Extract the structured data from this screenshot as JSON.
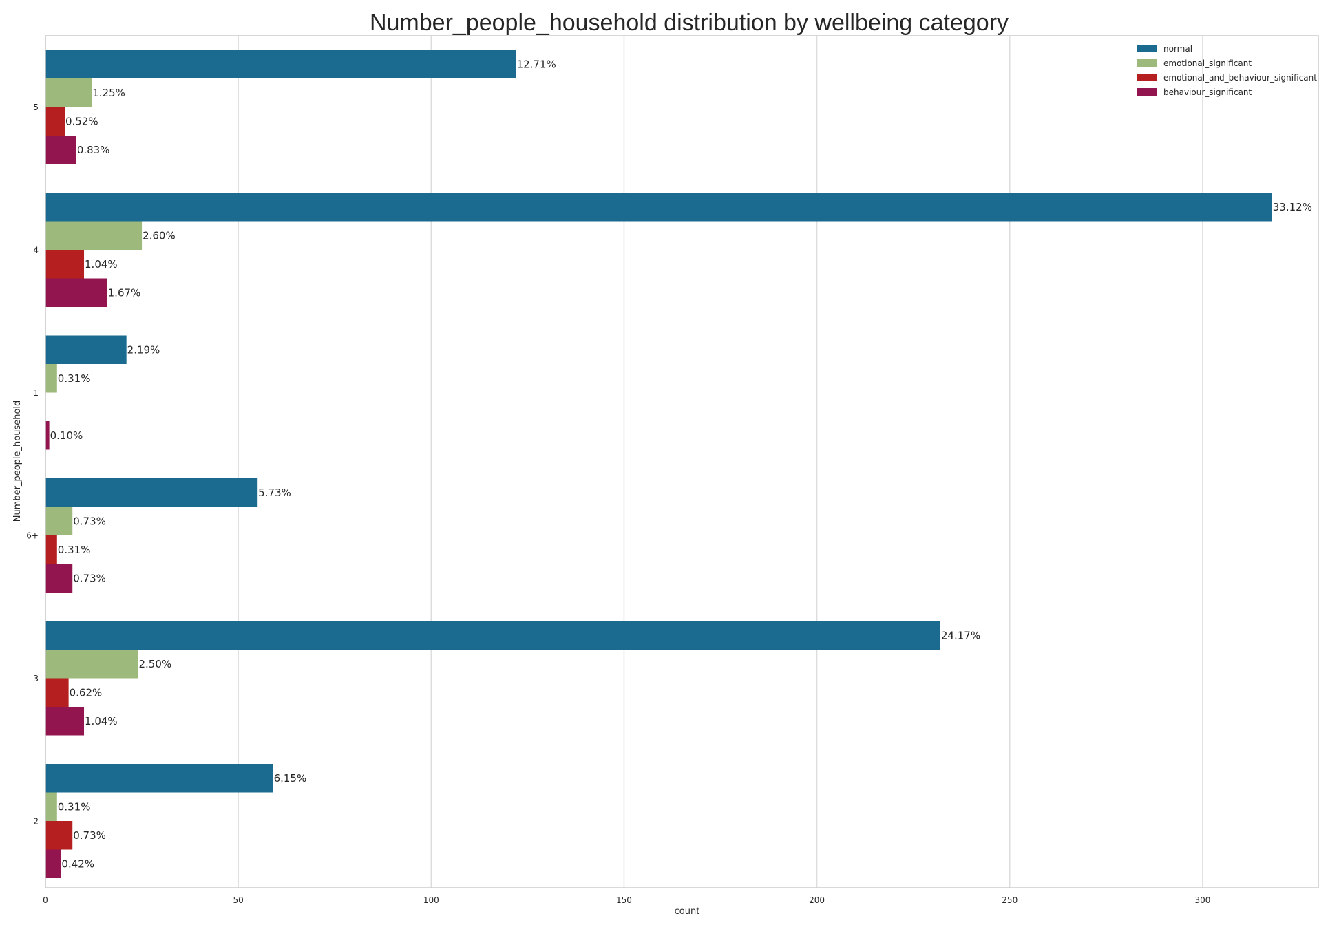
{
  "chart_data": {
    "type": "bar",
    "orientation": "horizontal",
    "title": "Number_people_household distribution by wellbeing category",
    "xlabel": "count",
    "ylabel": "Number_people_household",
    "xlim": [
      0,
      330
    ],
    "xticks": [
      0,
      50,
      100,
      150,
      200,
      250,
      300
    ],
    "grid": true,
    "legend_position": "top-right",
    "categories": [
      "5",
      "4",
      "1",
      "6+",
      "3",
      "2"
    ],
    "series": [
      {
        "name": "normal",
        "color": "#1a6b8f",
        "values": [
          122,
          318,
          21,
          55,
          232,
          59
        ],
        "labels": [
          "12.71%",
          "33.12%",
          "2.19%",
          "5.73%",
          "24.17%",
          "6.15%"
        ]
      },
      {
        "name": "emotional_significant",
        "color": "#9db97b",
        "values": [
          12,
          25,
          3,
          7,
          24,
          3
        ],
        "labels": [
          "1.25%",
          "2.60%",
          "0.31%",
          "0.73%",
          "2.50%",
          "0.31%"
        ]
      },
      {
        "name": "emotional_and_behaviour_significant",
        "color": "#b51f1f",
        "values": [
          5,
          10,
          0,
          3,
          6,
          7
        ],
        "labels": [
          "0.52%",
          "1.04%",
          "",
          "0.31%",
          "0.62%",
          "0.73%"
        ]
      },
      {
        "name": "behaviour_significant",
        "color": "#93154f",
        "values": [
          8,
          16,
          1,
          7,
          10,
          4
        ],
        "labels": [
          "0.83%",
          "1.67%",
          "0.10%",
          "0.73%",
          "1.04%",
          "0.42%"
        ]
      }
    ]
  }
}
